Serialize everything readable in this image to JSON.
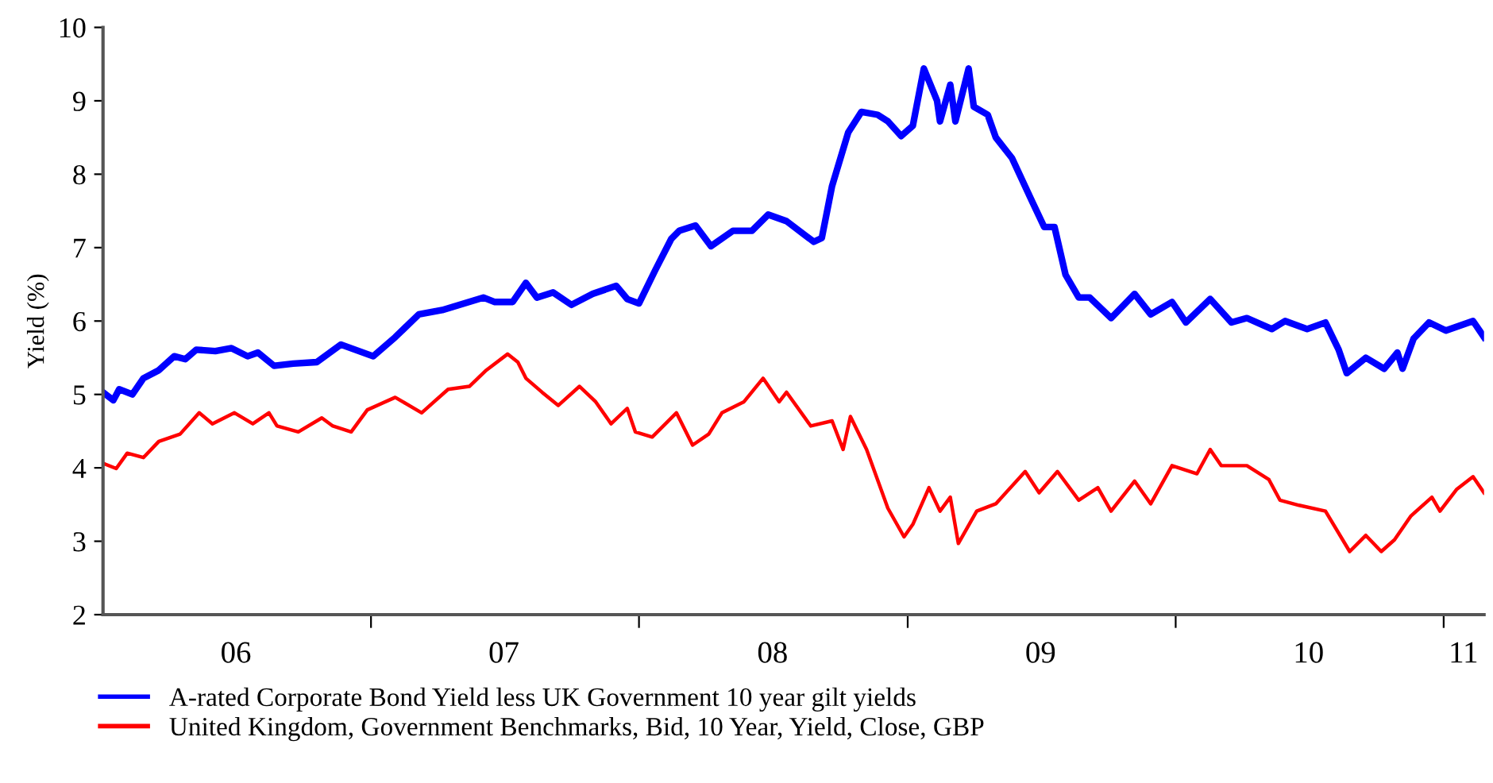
{
  "chart_data": {
    "type": "line",
    "ylabel": "Yield (%)",
    "xlim": [
      "2006-01-01",
      "2011-02-25"
    ],
    "ylim": [
      2,
      10
    ],
    "yticks": [
      2,
      3,
      4,
      5,
      6,
      7,
      8,
      9,
      10
    ],
    "xticks": [
      {
        "value": "2006-07-01",
        "label": "06"
      },
      {
        "value": "2007-01-01",
        "label": null
      },
      {
        "value": "2007-07-01",
        "label": "07"
      },
      {
        "value": "2008-01-01",
        "label": null
      },
      {
        "value": "2008-07-01",
        "label": "08"
      },
      {
        "value": "2009-01-01",
        "label": null
      },
      {
        "value": "2009-07-01",
        "label": "09"
      },
      {
        "value": "2010-01-01",
        "label": null
      },
      {
        "value": "2010-07-01",
        "label": "10"
      },
      {
        "value": "2011-01-01",
        "label": null
      },
      {
        "value": "2011-01-28",
        "label": "11"
      }
    ],
    "grid": false,
    "legend": "bottom",
    "marker": "none",
    "line_style": "solid",
    "series": [
      {
        "name": "A-rated Corporate Bond Yield less UK Government 10 year gilt yields",
        "color": "#0000ff",
        "x": [
          "2006-01-01",
          "2006-01-15",
          "2006-01-23",
          "2006-02-10",
          "2006-02-25",
          "2006-03-18",
          "2006-04-08",
          "2006-04-23",
          "2006-05-08",
          "2006-06-03",
          "2006-06-25",
          "2006-07-17",
          "2006-07-31",
          "2006-08-22",
          "2006-09-17",
          "2006-10-19",
          "2006-11-21",
          "2007-01-04",
          "2007-02-03",
          "2007-03-07",
          "2007-04-08",
          "2007-06-03",
          "2007-06-18",
          "2007-07-13",
          "2007-07-31",
          "2007-08-15",
          "2007-09-06",
          "2007-10-01",
          "2007-10-30",
          "2007-12-01",
          "2007-12-16",
          "2008-01-01",
          "2008-01-23",
          "2008-02-14",
          "2008-02-25",
          "2008-03-18",
          "2008-04-08",
          "2008-05-08",
          "2008-06-03",
          "2008-06-25",
          "2008-07-20",
          "2008-08-26",
          "2008-09-06",
          "2008-09-20",
          "2008-10-12",
          "2008-10-30",
          "2008-11-21",
          "2008-12-05",
          "2008-12-23",
          "2009-01-08",
          "2009-01-23",
          "2009-02-10",
          "2009-02-14",
          "2009-02-28",
          "2009-03-07",
          "2009-03-25",
          "2009-04-01",
          "2009-04-20",
          "2009-05-01",
          "2009-05-23",
          "2009-06-18",
          "2009-07-06",
          "2009-07-20",
          "2009-08-04",
          "2009-08-22",
          "2009-09-06",
          "2009-10-05",
          "2009-11-06",
          "2009-11-28",
          "2009-12-27",
          "2010-01-15",
          "2010-02-17",
          "2010-03-18",
          "2010-04-08",
          "2010-05-12",
          "2010-05-30",
          "2010-06-29",
          "2010-07-24",
          "2010-08-11",
          "2010-08-22",
          "2010-09-17",
          "2010-10-12",
          "2010-10-30",
          "2010-11-06",
          "2010-11-21",
          "2010-12-12",
          "2011-01-04",
          "2011-02-10",
          "2011-02-25"
        ],
        "values": [
          5.03,
          4.92,
          5.07,
          5.0,
          5.22,
          5.33,
          5.52,
          5.48,
          5.61,
          5.59,
          5.63,
          5.52,
          5.57,
          5.39,
          5.42,
          5.44,
          5.68,
          5.52,
          5.78,
          6.09,
          6.15,
          6.32,
          6.26,
          6.26,
          6.52,
          6.32,
          6.39,
          6.22,
          6.37,
          6.48,
          6.3,
          6.24,
          6.69,
          7.12,
          7.23,
          7.3,
          7.02,
          7.23,
          7.23,
          7.45,
          7.36,
          7.08,
          7.13,
          7.84,
          8.57,
          8.85,
          8.81,
          8.72,
          8.52,
          8.66,
          9.44,
          9.0,
          8.72,
          9.22,
          8.72,
          9.44,
          8.92,
          8.81,
          8.5,
          8.22,
          7.66,
          7.28,
          7.28,
          6.63,
          6.32,
          6.32,
          6.04,
          6.37,
          6.09,
          6.26,
          5.98,
          6.3,
          5.98,
          6.04,
          5.89,
          6.0,
          5.89,
          5.98,
          5.61,
          5.29,
          5.5,
          5.35,
          5.57,
          5.35,
          5.76,
          5.98,
          5.87,
          6.0,
          5.78
        ]
      },
      {
        "name": "United Kingdom, Government Benchmarks, Bid, 10 Year, Yield, Close, GBP",
        "color": "#ff0000",
        "x": [
          "2006-01-04",
          "2006-01-19",
          "2006-02-03",
          "2006-02-25",
          "2006-03-18",
          "2006-04-16",
          "2006-05-12",
          "2006-05-30",
          "2006-06-29",
          "2006-07-24",
          "2006-08-15",
          "2006-08-26",
          "2006-09-24",
          "2006-10-26",
          "2006-11-10",
          "2006-12-05",
          "2006-12-27",
          "2007-02-03",
          "2007-03-11",
          "2007-04-16",
          "2007-05-15",
          "2007-06-07",
          "2007-07-06",
          "2007-07-20",
          "2007-07-31",
          "2007-08-22",
          "2007-09-13",
          "2007-10-12",
          "2007-11-03",
          "2007-11-24",
          "2007-12-16",
          "2007-12-27",
          "2008-01-19",
          "2008-02-21",
          "2008-03-14",
          "2008-04-05",
          "2008-04-23",
          "2008-05-23",
          "2008-06-18",
          "2008-07-10",
          "2008-07-20",
          "2008-08-22",
          "2008-09-20",
          "2008-10-05",
          "2008-10-15",
          "2008-11-06",
          "2008-12-05",
          "2008-12-27",
          "2009-01-08",
          "2009-01-30",
          "2009-02-14",
          "2009-02-28",
          "2009-03-11",
          "2009-04-05",
          "2009-05-01",
          "2009-06-10",
          "2009-06-29",
          "2009-07-24",
          "2009-08-22",
          "2009-09-17",
          "2009-10-05",
          "2009-11-06",
          "2009-11-28",
          "2009-12-27",
          "2010-01-30",
          "2010-02-17",
          "2010-03-04",
          "2010-04-08",
          "2010-05-08",
          "2010-05-23",
          "2010-06-18",
          "2010-07-24",
          "2010-08-26",
          "2010-09-17",
          "2010-10-08",
          "2010-10-26",
          "2010-11-17",
          "2010-12-16",
          "2010-12-27",
          "2011-01-19",
          "2011-02-10",
          "2011-02-25"
        ],
        "values": [
          4.05,
          3.99,
          4.2,
          4.14,
          4.36,
          4.46,
          4.75,
          4.6,
          4.75,
          4.6,
          4.75,
          4.57,
          4.49,
          4.68,
          4.57,
          4.49,
          4.79,
          4.96,
          4.75,
          5.07,
          5.11,
          5.33,
          5.55,
          5.44,
          5.22,
          5.03,
          4.85,
          5.11,
          4.9,
          4.6,
          4.81,
          4.49,
          4.42,
          4.75,
          4.31,
          4.46,
          4.75,
          4.9,
          5.22,
          4.9,
          5.03,
          4.57,
          4.64,
          4.25,
          4.7,
          4.25,
          3.45,
          3.06,
          3.23,
          3.73,
          3.41,
          3.6,
          2.97,
          3.41,
          3.51,
          3.95,
          3.66,
          3.95,
          3.56,
          3.73,
          3.41,
          3.82,
          3.51,
          4.03,
          3.92,
          4.25,
          4.03,
          4.03,
          3.84,
          3.56,
          3.49,
          3.41,
          2.86,
          3.08,
          2.86,
          3.02,
          3.34,
          3.6,
          3.41,
          3.71,
          3.88,
          3.66
        ]
      }
    ]
  }
}
